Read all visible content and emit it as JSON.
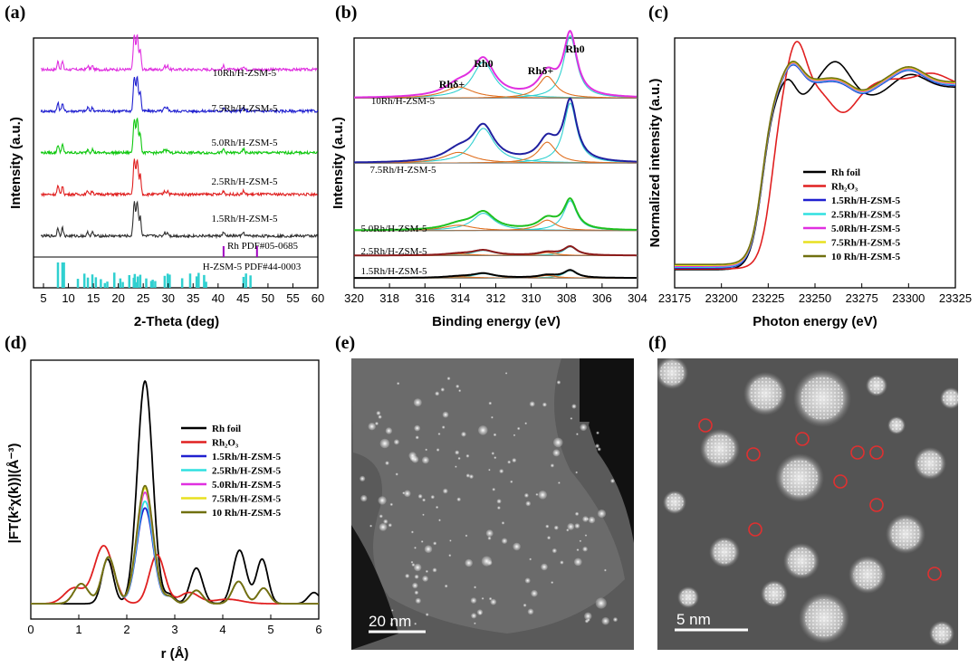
{
  "panel_labels": [
    "(a)",
    "(b)",
    "(c)",
    "(d)",
    "(e)",
    "(f)"
  ],
  "chart_data": [
    {
      "id": "a",
      "type": "line",
      "title": "",
      "xlabel": "2-Theta (deg)",
      "ylabel": "Intensity (a.u.)",
      "xlim": [
        3,
        60
      ],
      "xticks": [
        5,
        10,
        15,
        20,
        25,
        30,
        35,
        40,
        45,
        50,
        55,
        60
      ],
      "series": [
        {
          "name": "10Rh/H-ZSM-5",
          "color": "#e030e0",
          "offset": 0.85
        },
        {
          "name": "7.5Rh/H-ZSM-5",
          "color": "#2020d0",
          "offset": 0.66
        },
        {
          "name": "5.0Rh/H-ZSM-5",
          "color": "#10c810",
          "offset": 0.47
        },
        {
          "name": "2.5Rh/H-ZSM-5",
          "color": "#e02020",
          "offset": 0.28
        },
        {
          "name": "1.5Rh/H-ZSM-5",
          "color": "#303030",
          "offset": 0.09
        }
      ],
      "reference": [
        {
          "name": "Rh PDF#05-0685",
          "color": "#a000c0",
          "positions": [
            41.1,
            47.8
          ]
        },
        {
          "name": "H-ZSM-5 PDF#44-0003",
          "color": "#30d0d0",
          "positions": [
            7.9,
            8.8,
            9.1,
            11.9,
            13.2,
            13.9,
            14.8,
            15.5,
            16.5,
            17.3,
            17.8,
            19.2,
            20.4,
            20.9,
            22.2,
            23.1,
            23.3,
            23.7,
            23.9,
            24.4,
            25.6,
            26.6,
            26.9,
            27.4,
            29.3,
            29.9,
            30.3,
            32.8,
            34.4,
            35.7,
            36.1,
            37.2,
            37.6,
            45.1,
            45.6,
            46.5
          ]
        }
      ],
      "peak_positions": [
        7.9,
        8.8,
        13.9,
        14.8,
        23.1,
        23.3,
        23.7,
        23.9,
        24.4,
        29.3,
        29.9,
        41.1,
        45.1
      ]
    },
    {
      "id": "b",
      "type": "line",
      "xlabel": "Binding energy (eV)",
      "ylabel": "Intensity (a.u.)",
      "xlim": [
        320,
        304
      ],
      "xticks": [
        320,
        318,
        316,
        314,
        312,
        310,
        308,
        306,
        304
      ],
      "peak_labels": [
        {
          "text": "Rhδ+",
          "x": 314.4
        },
        {
          "text": "Rh0",
          "x": 312.7
        },
        {
          "text": "Rhδ+",
          "x": 309.1
        },
        {
          "text": "Rh0",
          "x": 307.6
        }
      ],
      "components": {
        "rh0_1": 307.8,
        "rh0_2": 312.7,
        "rhd_1": 309.1,
        "rhd_2": 314.1
      },
      "series": [
        {
          "name": "10Rh/H-ZSM-5",
          "envelope": "#e030e0",
          "offset": 0.73,
          "scale": 0.25
        },
        {
          "name": "7.5Rh/H-ZSM-5",
          "envelope": "#2020a0",
          "offset": 0.47,
          "scale": 0.24
        },
        {
          "name": "5.0Rh/H-ZSM-5",
          "envelope": "#20c020",
          "offset": 0.2,
          "scale": 0.12
        },
        {
          "name": "2.5Rh/H-ZSM-5",
          "envelope": "#8b1a1a",
          "offset": 0.1,
          "scale": 0.035
        },
        {
          "name": "1.5Rh/H-ZSM-5",
          "envelope": "#000000",
          "offset": 0.01,
          "scale": 0.03
        }
      ]
    },
    {
      "id": "c",
      "type": "line",
      "xlabel": "Photon energy (eV)",
      "ylabel": "Normalized intensity (a.u.)",
      "xlim": [
        23175,
        23325
      ],
      "xticks": [
        23175,
        23200,
        23225,
        23250,
        23275,
        23300,
        23325
      ],
      "series": [
        {
          "name": "Rh foil",
          "color": "#000000"
        },
        {
          "name": "Rh₂O₃",
          "color": "#e02020"
        },
        {
          "name": "1.5Rh/H-ZSM-5",
          "color": "#2020d0"
        },
        {
          "name": "2.5Rh/H-ZSM-5",
          "color": "#30e0e0"
        },
        {
          "name": "5.0Rh/H-ZSM-5",
          "color": "#e030e0"
        },
        {
          "name": "7.5Rh/H-ZSM-5",
          "color": "#e8e020"
        },
        {
          "name": "10 Rh/H-ZSM-5",
          "color": "#707010"
        }
      ]
    },
    {
      "id": "d",
      "type": "line",
      "xlabel": "r (Å)",
      "ylabel": "|FT(k²χ(k))|(Å⁻³)",
      "xlim": [
        0,
        6
      ],
      "xticks": [
        0,
        1,
        2,
        3,
        4,
        5,
        6
      ],
      "series": [
        {
          "name": "Rh foil",
          "color": "#000000",
          "main_peak": 1.0
        },
        {
          "name": "Rh₂O₃",
          "color": "#e02020",
          "main_peak": 0.27
        },
        {
          "name": "1.5Rh/H-ZSM-5",
          "color": "#2020d0",
          "main_peak": 0.43
        },
        {
          "name": "2.5Rh/H-ZSM-5",
          "color": "#30e0e0",
          "main_peak": 0.46
        },
        {
          "name": "5.0Rh/H-ZSM-5",
          "color": "#e030e0",
          "main_peak": 0.5
        },
        {
          "name": "7.5Rh/H-ZSM-5",
          "color": "#e8e020",
          "main_peak": 0.52
        },
        {
          "name": "10 Rh/H-ZSM-5",
          "color": "#707010",
          "main_peak": 0.53
        }
      ]
    }
  ],
  "images": {
    "e": {
      "scale_bar": "20 nm"
    },
    "f": {
      "scale_bar": "5 nm"
    }
  }
}
